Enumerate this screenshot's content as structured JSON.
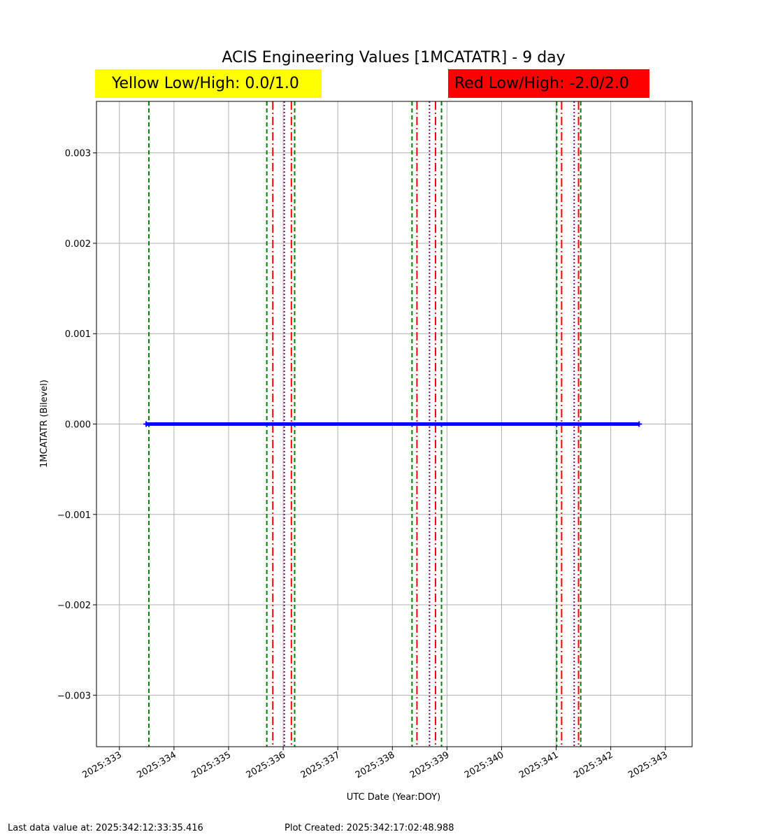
{
  "chart_data": {
    "type": "line",
    "title": "ACIS Engineering Values [1MCATATR] - 9 day",
    "yellow_limits": "Yellow Low/High: 0.0/1.0",
    "red_limits": "Red Low/High: -2.0/2.0",
    "x_label": "UTC Date (Year:DOY)",
    "y_label": "1MCATATR (Bilevel)",
    "x": [
      333.49,
      342.52
    ],
    "series": [
      {
        "color": "#0000ff",
        "values": [
          0,
          0
        ]
      }
    ],
    "vlines": [
      {
        "color": "#008000",
        "style": "dashed",
        "x": [
          333.54,
          335.7,
          336.21,
          338.36,
          338.9,
          341.01,
          341.45
        ]
      },
      {
        "color": "#ff0000",
        "style": "dashdot",
        "x": [
          335.81,
          336.15,
          338.45,
          338.79,
          341.1,
          341.41
        ]
      },
      {
        "color": "#800080",
        "style": "dotted",
        "x": [
          336.02,
          338.68,
          341.33
        ]
      }
    ],
    "xlim": [
      332.58,
      343.49
    ],
    "xticks": [
      {
        "value": 333,
        "label": "2025:333"
      },
      {
        "value": 334,
        "label": "2025:334"
      },
      {
        "value": 335,
        "label": "2025:335"
      },
      {
        "value": 336,
        "label": "2025:336"
      },
      {
        "value": 337,
        "label": "2025:337"
      },
      {
        "value": 338,
        "label": "2025:338"
      },
      {
        "value": 339,
        "label": "2025:339"
      },
      {
        "value": 340,
        "label": "2025:340"
      },
      {
        "value": 341,
        "label": "2025:341"
      },
      {
        "value": 342,
        "label": "2025:342"
      },
      {
        "value": 343,
        "label": "2025:343"
      }
    ],
    "ylim": [
      -0.00357,
      0.00357
    ],
    "yticks": [
      {
        "value": -0.003,
        "label": "−0.003"
      },
      {
        "value": -0.002,
        "label": "−0.002"
      },
      {
        "value": -0.001,
        "label": "−0.001"
      },
      {
        "value": 0,
        "label": "0.000"
      },
      0.001,
      0.002,
      0.003
    ],
    "grid": true,
    "footer_left": "Last data value at: 2025:342:12:33:35.416",
    "footer_right": "Plot Created: 2025:342:17:02:48.988"
  }
}
